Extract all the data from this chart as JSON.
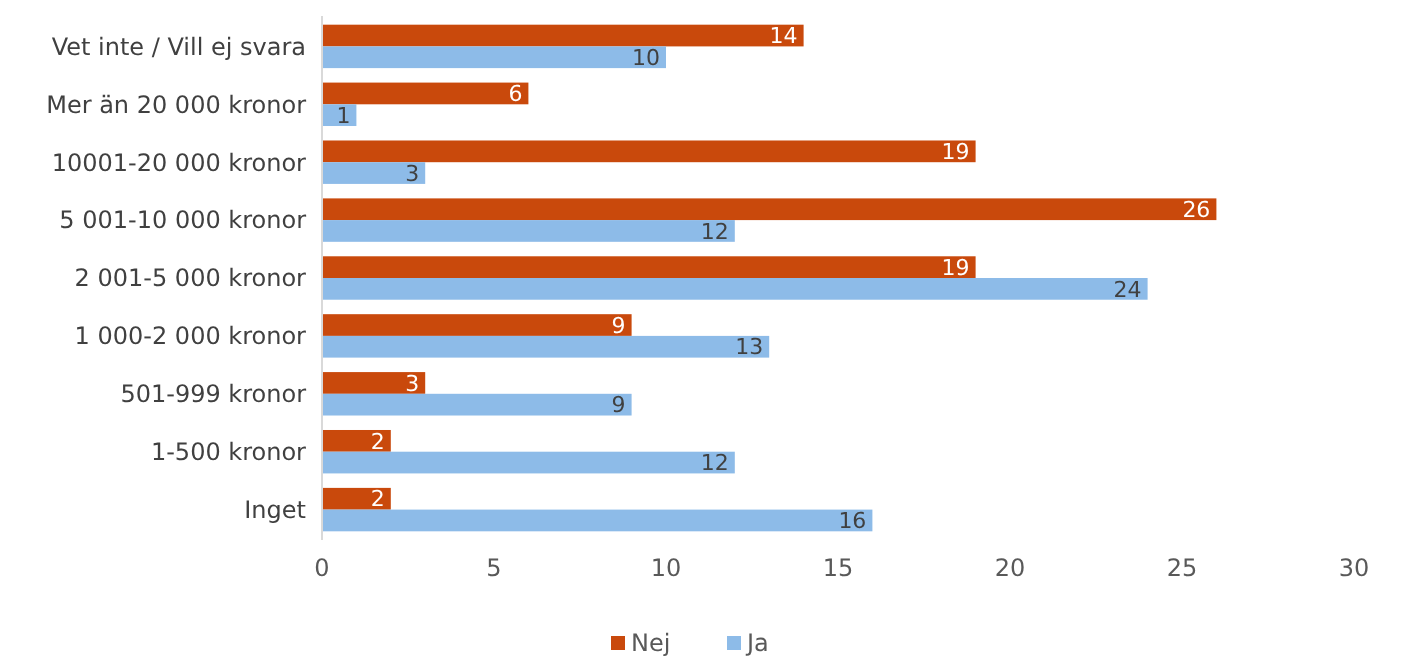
{
  "chart_data": {
    "type": "bar",
    "orientation": "horizontal",
    "categories": [
      "Vet inte / Vill ej svara",
      "Mer än 20 000 kronor",
      "10001-20 000 kronor",
      "5 001-10 000 kronor",
      "2 001-5 000 kronor",
      "1 000-2 000 kronor",
      "501-999 kronor",
      "1-500 kronor",
      "Inget"
    ],
    "series": [
      {
        "name": "Nej",
        "color": "#c9490c",
        "values": [
          14,
          6,
          19,
          26,
          19,
          9,
          3,
          2,
          2
        ]
      },
      {
        "name": "Ja",
        "color": "#8dbbe8",
        "values": [
          10,
          1,
          3,
          12,
          24,
          13,
          9,
          12,
          16
        ]
      }
    ],
    "xlim": [
      0,
      30
    ],
    "xticks": [
      0,
      5,
      10,
      15,
      20,
      25,
      30
    ],
    "data_labels": true,
    "legend": "bottom",
    "grid": false
  }
}
